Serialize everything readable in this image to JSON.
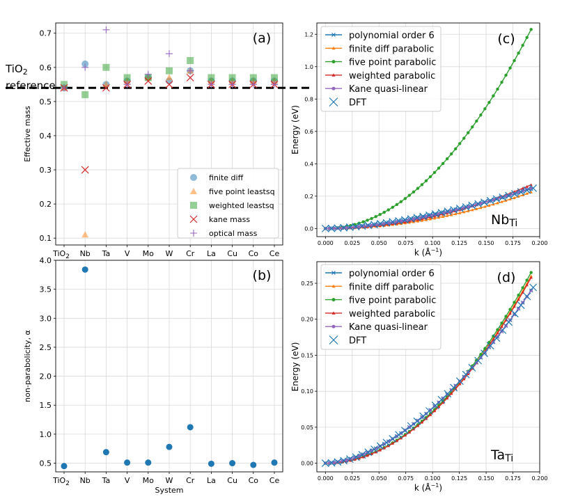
{
  "chart_data": [
    {
      "type": "scatter",
      "panel_label": "(a)",
      "ylabel": "Effective mass",
      "xlabel": "System",
      "categories": [
        "TiO2",
        "Nb",
        "Ta",
        "V",
        "Mo",
        "W",
        "Cr",
        "La",
        "Cu",
        "Co",
        "Ce"
      ],
      "ylim": [
        0.08,
        0.73
      ],
      "yticks": [
        0.1,
        0.2,
        0.3,
        0.4,
        0.5,
        0.6,
        0.7
      ],
      "ytick_labels": [
        "0.1",
        "0.2",
        "0.3",
        "0.4",
        "0.5",
        "0.6",
        "0.7"
      ],
      "reference_line": {
        "value": 0.54,
        "label_line1": "TiO",
        "label_sub": "2",
        "label_line2": "reference"
      },
      "series": [
        {
          "name": "finite diff",
          "marker": "circle",
          "color": "#1f77b4",
          "alpha": 0.5,
          "values": [
            0.54,
            0.61,
            0.55,
            0.56,
            0.57,
            0.56,
            0.59,
            0.56,
            0.56,
            0.56,
            0.56
          ]
        },
        {
          "name": "five point leastsq",
          "marker": "triangle",
          "color": "#ff7f0e",
          "alpha": 0.5,
          "values": [
            0.54,
            0.11,
            0.55,
            0.56,
            0.57,
            0.57,
            0.59,
            0.56,
            0.56,
            0.56,
            0.56
          ]
        },
        {
          "name": "weighted leastsq",
          "marker": "square",
          "color": "#2ca02c",
          "alpha": 0.5,
          "values": [
            0.55,
            0.52,
            0.6,
            0.57,
            0.57,
            0.59,
            0.62,
            0.57,
            0.57,
            0.57,
            0.57
          ]
        },
        {
          "name": "kane mass",
          "marker": "x",
          "color": "#d62728",
          "alpha": 1,
          "values": [
            0.54,
            0.3,
            0.54,
            0.55,
            0.56,
            0.55,
            0.57,
            0.55,
            0.55,
            0.55,
            0.55
          ]
        },
        {
          "name": "optical mass",
          "marker": "plus",
          "color": "#9467bd",
          "alpha": 1,
          "values": [
            0.54,
            0.6,
            0.71,
            0.55,
            0.58,
            0.64,
            0.59,
            0.55,
            0.55,
            0.55,
            0.55
          ]
        }
      ]
    },
    {
      "type": "scatter",
      "panel_label": "(b)",
      "ylabel": "non-parabolicity, α",
      "xlabel": "System",
      "categories": [
        "TiO2",
        "Nb",
        "Ta",
        "V",
        "Mo",
        "W",
        "Cr",
        "La",
        "Cu",
        "Co",
        "Ce"
      ],
      "ylim": [
        0.35,
        4.0
      ],
      "yticks": [
        0.5,
        1.0,
        1.5,
        2.0,
        2.5,
        3.0,
        3.5,
        4.0
      ],
      "ytick_labels": [
        "0.5",
        "1.0",
        "1.5",
        "2.0",
        "2.5",
        "3.0",
        "3.5",
        "4.0"
      ],
      "color": "#1f77b4",
      "values": [
        0.45,
        3.84,
        0.69,
        0.51,
        0.51,
        0.78,
        1.12,
        0.49,
        0.5,
        0.47,
        0.51
      ]
    },
    {
      "type": "line",
      "panel_label": "(c)",
      "annotation": "Nb",
      "annotation_sub": "Ti",
      "xlabel": "k (Å",
      "xlabel_sup": "−1",
      "xlabel_end": ")",
      "ylabel": "Energy (eV)",
      "xlim": [
        -0.008,
        0.2
      ],
      "ylim": [
        -0.05,
        1.27
      ],
      "xticks": [
        0,
        0.025,
        0.05,
        0.075,
        0.1,
        0.125,
        0.15,
        0.175,
        0.2
      ],
      "xtick_labels": [
        "0.000",
        "0.025",
        "0.050",
        "0.075",
        "0.100",
        "0.125",
        "0.150",
        "0.175",
        "0.200"
      ],
      "yticks": [
        0,
        0.2,
        0.4,
        0.6,
        0.8,
        1.0,
        1.2
      ],
      "ytick_labels": [
        "0.0",
        "0.2",
        "0.4",
        "0.6",
        "0.8",
        "1.0",
        "1.2"
      ],
      "k_max": 0.192,
      "series": [
        {
          "name": "polynomial order 6",
          "color": "#1f77b4",
          "end_value": 0.245,
          "exponent": 1.6,
          "marker": "x"
        },
        {
          "name": "finite diff parabolic",
          "color": "#ff7f0e",
          "end_value": 0.225,
          "exponent": 2,
          "marker": "tri"
        },
        {
          "name": "five point parabolic",
          "color": "#2ca02c",
          "end_value": 1.23,
          "exponent": 2,
          "marker": "dot"
        },
        {
          "name": "weighted parabolic",
          "color": "#d62728",
          "end_value": 0.27,
          "exponent": 2,
          "marker": "tri"
        },
        {
          "name": "Kane quasi-linear",
          "color": "#9467bd",
          "end_value": 0.25,
          "exponent": 1.7,
          "marker": "dot"
        },
        {
          "name": "DFT",
          "color": "#1f77b4",
          "end_value": 0.245,
          "exponent": 1.6,
          "marker": "bigx"
        }
      ]
    },
    {
      "type": "line",
      "panel_label": "(d)",
      "annotation": "Ta",
      "annotation_sub": "Ti",
      "xlabel": "k (Å",
      "xlabel_sup": "−1",
      "xlabel_end": ")",
      "ylabel": "Energy (eV)",
      "xlim": [
        -0.008,
        0.2
      ],
      "ylim": [
        -0.012,
        0.28
      ],
      "xticks": [
        0,
        0.025,
        0.05,
        0.075,
        0.1,
        0.125,
        0.15,
        0.175,
        0.2
      ],
      "xtick_labels": [
        "0.000",
        "0.025",
        "0.050",
        "0.075",
        "0.100",
        "0.125",
        "0.150",
        "0.175",
        "0.200"
      ],
      "yticks": [
        0,
        0.05,
        0.1,
        0.15,
        0.2,
        0.25
      ],
      "ytick_labels": [
        "0.00",
        "0.05",
        "0.10",
        "0.15",
        "0.20",
        "0.25"
      ],
      "k_max": 0.192,
      "series": [
        {
          "name": "polynomial order 6",
          "color": "#1f77b4",
          "end_value": 0.24,
          "exponent": 1.75,
          "marker": "x"
        },
        {
          "name": "finite diff parabolic",
          "color": "#ff7f0e",
          "end_value": 0.26,
          "exponent": 2,
          "marker": "tri"
        },
        {
          "name": "five point parabolic",
          "color": "#2ca02c",
          "end_value": 0.265,
          "exponent": 2,
          "marker": "dot"
        },
        {
          "name": "weighted parabolic",
          "color": "#d62728",
          "end_value": 0.258,
          "exponent": 2,
          "marker": "tri"
        },
        {
          "name": "Kane quasi-linear",
          "color": "#9467bd",
          "end_value": 0.24,
          "exponent": 1.75,
          "marker": "dot"
        },
        {
          "name": "DFT",
          "color": "#1f77b4",
          "end_value": 0.24,
          "exponent": 1.75,
          "marker": "bigx"
        }
      ]
    }
  ]
}
